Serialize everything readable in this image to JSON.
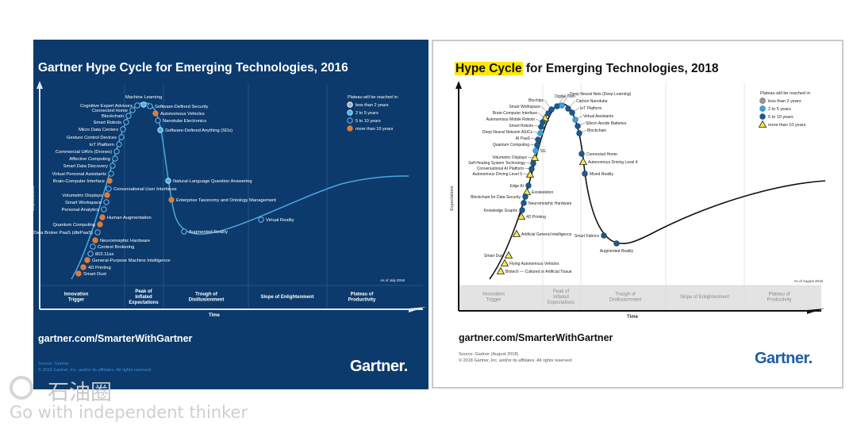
{
  "left_chart": {
    "title": "Gartner Hype Cycle for Emerging Technologies, 2016",
    "y_axis_label": "Expectations",
    "x_axis_label": "Time",
    "as_of": "As of July 2016",
    "phases": [
      "Innovation Trigger",
      "Peak of Inflated Expectations",
      "Trough of Disillusionment",
      "Slope of Enlightenment",
      "Plateau of Productivity"
    ],
    "legend": {
      "title": "Plateau will be reached in:",
      "items": [
        {
          "label": "less than 2 years",
          "color": "#a9a9a9"
        },
        {
          "label": "2 to 5 years",
          "color": "#3fb3e6"
        },
        {
          "label": "5 to 10 years",
          "color": "#0c3a6c"
        },
        {
          "label": "more than 10 years",
          "color": "#e07b39"
        }
      ]
    },
    "technologies": [
      {
        "label": "Machine Learning",
        "plateau": "2 to 5 years"
      },
      {
        "label": "Cognitive Expert Advisors",
        "plateau": "5 to 10 years"
      },
      {
        "label": "Software-Defined Security",
        "plateau": "5 to 10 years"
      },
      {
        "label": "Connected Home",
        "plateau": "5 to 10 years"
      },
      {
        "label": "Autonomous Vehicles",
        "plateau": "more than 10 years"
      },
      {
        "label": "Blockchain",
        "plateau": "5 to 10 years"
      },
      {
        "label": "Nanotube Electronics",
        "plateau": "5 to 10 years"
      },
      {
        "label": "Smart Robots",
        "plateau": "5 to 10 years"
      },
      {
        "label": "Software-Defined Anything (SDx)",
        "plateau": "2 to 5 years"
      },
      {
        "label": "Micro Data Centers",
        "plateau": "5 to 10 years"
      },
      {
        "label": "Gesture Control Devices",
        "plateau": "5 to 10 years"
      },
      {
        "label": "IoT Platform",
        "plateau": "5 to 10 years"
      },
      {
        "label": "Commercial UAVs (Drones)",
        "plateau": "5 to 10 years"
      },
      {
        "label": "Affective Computing",
        "plateau": "5 to 10 years"
      },
      {
        "label": "Smart Data Discovery",
        "plateau": "5 to 10 years"
      },
      {
        "label": "Virtual Personal Assistants",
        "plateau": "5 to 10 years"
      },
      {
        "label": "Brain-Computer Interface",
        "plateau": "more than 10 years"
      },
      {
        "label": "Conversational User Interfaces",
        "plateau": "5 to 10 years"
      },
      {
        "label": "Volumetric Displays",
        "plateau": "more than 10 years"
      },
      {
        "label": "Smart Workspace",
        "plateau": "5 to 10 years"
      },
      {
        "label": "Personal Analytics",
        "plateau": "5 to 10 years"
      },
      {
        "label": "Human Augmentation",
        "plateau": "more than 10 years"
      },
      {
        "label": "Quantum Computing",
        "plateau": "more than 10 years"
      },
      {
        "label": "Data Broker PaaS (dbrPaaS)",
        "plateau": "5 to 10 years"
      },
      {
        "label": "Neuromorphic Hardware",
        "plateau": "more than 10 years"
      },
      {
        "label": "Context Brokering",
        "plateau": "5 to 10 years"
      },
      {
        "label": "802.11ax",
        "plateau": "5 to 10 years"
      },
      {
        "label": "General-Purpose Machine Intelligence",
        "plateau": "more than 10 years"
      },
      {
        "label": "4D Printing",
        "plateau": "more than 10 years"
      },
      {
        "label": "Smart Dust",
        "plateau": "more than 10 years"
      },
      {
        "label": "Natural-Language Question Answering",
        "plateau": "2 to 5 years"
      },
      {
        "label": "Enterprise Taxonomy and Ontology Management",
        "plateau": "more than 10 years"
      },
      {
        "label": "Augmented Reality",
        "plateau": "5 to 10 years"
      },
      {
        "label": "Virtual Reality",
        "plateau": "5 to 10 years"
      }
    ],
    "url": "gartner.com/SmarterWithGartner",
    "source": "Source: Gartner",
    "copyright": "© 2016 Gartner, Inc. and/or its affiliates. All rights reserved.",
    "logo": "Gartner."
  },
  "right_chart": {
    "title_highlight": "Hype Cycle",
    "title_rest": " for Emerging Technologies, 2018",
    "y_axis_label": "Expectations",
    "x_axis_label": "Time",
    "as_of": "As of August 2018",
    "phases": [
      "Innovation Trigger",
      "Peak of Inflated Expectations",
      "Trough of Disillusionment",
      "Slope of Enlightenment",
      "Plateau of Productivity"
    ],
    "legend": {
      "title": "Plateau will be reached in:",
      "items": [
        {
          "label": "less than 2 years",
          "color": "#9a9a9a"
        },
        {
          "label": "2 to 5 years",
          "color": "#3aa3dc"
        },
        {
          "label": "5 to 10 years",
          "color": "#1b5a8f"
        },
        {
          "label": "more than 10 years",
          "color": "#f5e94b"
        }
      ]
    },
    "technologies": [
      {
        "label": "Digital Twin",
        "plateau": "5 to 10 years"
      },
      {
        "label": "Biochips",
        "plateau": "5 to 10 years"
      },
      {
        "label": "Deep Neural Nets (Deep Learning)",
        "plateau": "2 to 5 years"
      },
      {
        "label": "Carbon Nanotube",
        "plateau": "5 to 10 years"
      },
      {
        "label": "IoT Platform",
        "plateau": "5 to 10 years"
      },
      {
        "label": "Smart Workspace",
        "plateau": "5 to 10 years"
      },
      {
        "label": "Brain-Computer Interface",
        "plateau": "more than 10 years"
      },
      {
        "label": "Virtual Assistants",
        "plateau": "2 to 5 years"
      },
      {
        "label": "Autonomous Mobile Robots",
        "plateau": "5 to 10 years"
      },
      {
        "label": "Silicon Anode Batteries",
        "plateau": "5 to 10 years"
      },
      {
        "label": "Smart Robots",
        "plateau": "5 to 10 years"
      },
      {
        "label": "Blockchain",
        "plateau": "5 to 10 years"
      },
      {
        "label": "Deep Neural Network ASICs",
        "plateau": "2 to 5 years"
      },
      {
        "label": "AI PaaS",
        "plateau": "5 to 10 years"
      },
      {
        "label": "Quantum Computing",
        "plateau": "5 to 10 years"
      },
      {
        "label": "5G",
        "plateau": "2 to 5 years"
      },
      {
        "label": "Volumetric Displays",
        "plateau": "more than 10 years"
      },
      {
        "label": "Self-Healing System Technology",
        "plateau": "5 to 10 years"
      },
      {
        "label": "Conversational AI Platform",
        "plateau": "5 to 10 years"
      },
      {
        "label": "Autonomous Driving Level 5",
        "plateau": "more than 10 years"
      },
      {
        "label": "Edge AI",
        "plateau": "5 to 10 years"
      },
      {
        "label": "Exoskeleton",
        "plateau": "more than 10 years"
      },
      {
        "label": "Blockchain for Data Security",
        "plateau": "5 to 10 years"
      },
      {
        "label": "Neuromorphic Hardware",
        "plateau": "5 to 10 years"
      },
      {
        "label": "Knowledge Graphs",
        "plateau": "5 to 10 years"
      },
      {
        "label": "4D Printing",
        "plateau": "more than 10 years"
      },
      {
        "label": "Artificial General Intelligence",
        "plateau": "more than 10 years"
      },
      {
        "label": "Smart Dust",
        "plateau": "more than 10 years"
      },
      {
        "label": "Flying Autonomous Vehicles",
        "plateau": "more than 10 years"
      },
      {
        "label": "Biotech — Cultured or Artificial Tissue",
        "plateau": "more than 10 years"
      },
      {
        "label": "Connected Home",
        "plateau": "5 to 10 years"
      },
      {
        "label": "Autonomous Driving Level 4",
        "plateau": "more than 10 years"
      },
      {
        "label": "Mixed Reality",
        "plateau": "5 to 10 years"
      },
      {
        "label": "Smart Fabrics",
        "plateau": "5 to 10 years"
      },
      {
        "label": "Augmented Reality",
        "plateau": "5 to 10 years"
      }
    ],
    "url": "gartner.com/SmarterWithGartner",
    "source": "Source: Gartner (August 2018)",
    "copyright": "© 2018 Gartner, Inc. and/or its affiliates. All rights reserved.",
    "logo": "Gartner."
  },
  "watermark": {
    "brand": "石油圈",
    "slogan": "Go with independent thinker"
  }
}
